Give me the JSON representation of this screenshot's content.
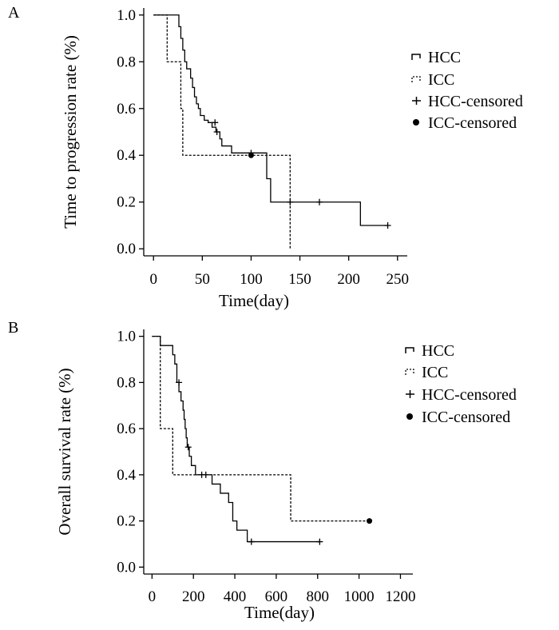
{
  "chart_data": [
    {
      "type": "line",
      "panel": "A",
      "xlabel": "Time(day)",
      "ylabel": "Time to progression rate (%)",
      "xlim": [
        -10,
        260
      ],
      "ylim": [
        -0.03,
        1.03
      ],
      "xticks": [
        0,
        50,
        100,
        150,
        200,
        250
      ],
      "yticks": [
        0.0,
        0.2,
        0.4,
        0.6,
        0.8,
        1.0
      ],
      "xtick_labels": [
        "0",
        "50",
        "100",
        "150",
        "200",
        "250"
      ],
      "ytick_labels": [
        "0.0",
        "0.2",
        "0.4",
        "0.6",
        "0.8",
        "1.0"
      ],
      "legend_position": "right",
      "series": [
        {
          "name": "HCC",
          "style": "solid",
          "x": [
            0,
            22,
            26,
            28,
            30,
            32,
            34,
            38,
            40,
            42,
            44,
            46,
            48,
            52,
            56,
            60,
            64,
            68,
            70,
            80,
            114,
            116,
            120,
            212,
            240
          ],
          "y": [
            1.0,
            1.0,
            0.95,
            0.9,
            0.85,
            0.8,
            0.77,
            0.73,
            0.69,
            0.65,
            0.62,
            0.6,
            0.57,
            0.55,
            0.54,
            0.52,
            0.5,
            0.47,
            0.44,
            0.41,
            0.41,
            0.3,
            0.2,
            0.1,
            0.1
          ]
        },
        {
          "name": "ICC",
          "style": "dashed",
          "x": [
            0,
            14,
            28,
            30,
            139,
            140
          ],
          "y": [
            1.0,
            0.8,
            0.6,
            0.4,
            0.4,
            0.0
          ]
        }
      ],
      "censored": [
        {
          "series": "HCC-censored",
          "marker": "plus",
          "x": [
            63,
            65,
            100,
            140,
            170,
            240
          ],
          "y": [
            0.54,
            0.5,
            0.41,
            0.2,
            0.2,
            0.1
          ]
        },
        {
          "series": "ICC-censored",
          "marker": "dot",
          "x": [
            100
          ],
          "y": [
            0.4
          ]
        }
      ],
      "legend": [
        "HCC",
        "ICC",
        "HCC-censored",
        "ICC-censored"
      ]
    },
    {
      "type": "line",
      "panel": "B",
      "xlabel": "Time(day)",
      "ylabel": "Overall survival rate (%)",
      "xlim": [
        -40,
        1260
      ],
      "ylim": [
        -0.03,
        1.03
      ],
      "xticks": [
        0,
        200,
        400,
        600,
        800,
        1000,
        1200
      ],
      "yticks": [
        0.0,
        0.2,
        0.4,
        0.6,
        0.8,
        1.0
      ],
      "xtick_labels": [
        "0",
        "200",
        "400",
        "600",
        "800",
        "1000",
        "1200"
      ],
      "ytick_labels": [
        "0.0",
        "0.2",
        "0.4",
        "0.6",
        "0.8",
        "1.0"
      ],
      "legend_position": "right",
      "series": [
        {
          "name": "HCC",
          "style": "solid",
          "x": [
            0,
            40,
            100,
            110,
            120,
            130,
            140,
            150,
            155,
            160,
            165,
            170,
            180,
            190,
            210,
            230,
            290,
            330,
            370,
            390,
            410,
            460,
            810
          ],
          "y": [
            1.0,
            0.96,
            0.92,
            0.88,
            0.8,
            0.76,
            0.72,
            0.68,
            0.64,
            0.6,
            0.56,
            0.52,
            0.48,
            0.44,
            0.4,
            0.4,
            0.36,
            0.32,
            0.28,
            0.2,
            0.16,
            0.11,
            0.11
          ]
        },
        {
          "name": "ICC",
          "style": "dashed",
          "x": [
            0,
            40,
            100,
            670,
            1050
          ],
          "y": [
            1.0,
            0.6,
            0.4,
            0.2,
            0.2
          ]
        }
      ],
      "censored": [
        {
          "series": "HCC-censored",
          "marker": "plus",
          "x": [
            130,
            175,
            240,
            260,
            480,
            810
          ],
          "y": [
            0.8,
            0.52,
            0.4,
            0.4,
            0.11,
            0.11
          ]
        },
        {
          "series": "ICC-censored",
          "marker": "dot",
          "x": [
            1050
          ],
          "y": [
            0.2
          ]
        }
      ],
      "legend": [
        "HCC",
        "ICC",
        "HCC-censored",
        "ICC-censored"
      ]
    }
  ]
}
